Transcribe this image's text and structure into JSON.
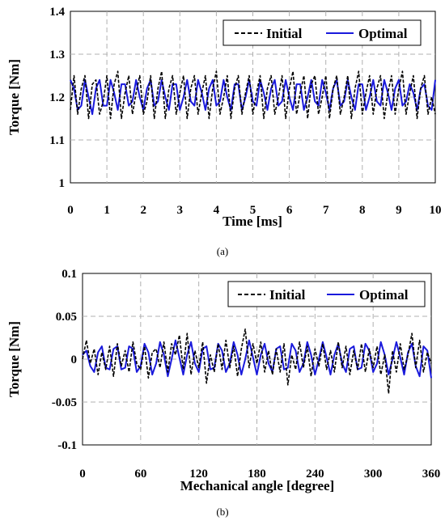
{
  "colors": {
    "initial": "#000000",
    "optimal": "#1a1adc",
    "grid": "#b0b0b0"
  },
  "chart_data": [
    {
      "type": "line",
      "caption": "(a)",
      "xlabel": "Time [ms]",
      "ylabel": "Torque [Nm]",
      "xlim": [
        0,
        10
      ],
      "ylim": [
        1,
        1.4
      ],
      "xticks": [
        0,
        1,
        2,
        3,
        4,
        5,
        6,
        7,
        8,
        9,
        10
      ],
      "yticks": [
        1,
        1.1,
        1.2,
        1.3,
        1.4
      ],
      "ytick_labels": [
        "1",
        "1.1",
        "1.2",
        "1.3",
        "1.4"
      ],
      "grid": true,
      "legend_position": "top-right",
      "series": [
        {
          "name": "Initial",
          "style": "dashed",
          "color": "#000000",
          "x": [
            0,
            0.1,
            0.2,
            0.3,
            0.4,
            0.5,
            0.6,
            0.7,
            0.8,
            0.9,
            1,
            1.1,
            1.2,
            1.3,
            1.4,
            1.5,
            1.6,
            1.7,
            1.8,
            1.9,
            2,
            2.1,
            2.2,
            2.3,
            2.4,
            2.5,
            2.6,
            2.7,
            2.8,
            2.9,
            3,
            3.1,
            3.2,
            3.3,
            3.4,
            3.5,
            3.6,
            3.7,
            3.8,
            3.9,
            4,
            4.1,
            4.2,
            4.3,
            4.4,
            4.5,
            4.6,
            4.7,
            4.8,
            4.9,
            5,
            5.1,
            5.2,
            5.3,
            5.4,
            5.5,
            5.6,
            5.7,
            5.8,
            5.9,
            6,
            6.1,
            6.2,
            6.3,
            6.4,
            6.5,
            6.6,
            6.7,
            6.8,
            6.9,
            7,
            7.1,
            7.2,
            7.3,
            7.4,
            7.5,
            7.6,
            7.7,
            7.8,
            7.9,
            8,
            8.1,
            8.2,
            8.3,
            8.4,
            8.5,
            8.6,
            8.7,
            8.8,
            8.9,
            9,
            9.1,
            9.2,
            9.3,
            9.4,
            9.5,
            9.6,
            9.7,
            9.8,
            9.9,
            10
          ],
          "y": [
            1.17,
            1.25,
            1.16,
            1.22,
            1.25,
            1.15,
            1.23,
            1.24,
            1.16,
            1.19,
            1.25,
            1.15,
            1.23,
            1.26,
            1.15,
            1.21,
            1.25,
            1.16,
            1.21,
            1.25,
            1.16,
            1.19,
            1.25,
            1.15,
            1.22,
            1.26,
            1.15,
            1.22,
            1.25,
            1.16,
            1.21,
            1.25,
            1.15,
            1.22,
            1.25,
            1.16,
            1.21,
            1.25,
            1.15,
            1.22,
            1.26,
            1.16,
            1.2,
            1.25,
            1.15,
            1.22,
            1.25,
            1.16,
            1.21,
            1.25,
            1.16,
            1.21,
            1.25,
            1.15,
            1.22,
            1.25,
            1.16,
            1.2,
            1.25,
            1.15,
            1.22,
            1.26,
            1.16,
            1.21,
            1.25,
            1.15,
            1.23,
            1.25,
            1.16,
            1.2,
            1.25,
            1.15,
            1.22,
            1.25,
            1.16,
            1.2,
            1.25,
            1.15,
            1.22,
            1.26,
            1.16,
            1.21,
            1.25,
            1.16,
            1.22,
            1.25,
            1.15,
            1.21,
            1.25,
            1.16,
            1.22,
            1.26,
            1.16,
            1.21,
            1.25,
            1.15,
            1.22,
            1.25,
            1.16,
            1.2,
            1.16
          ]
        },
        {
          "name": "Optimal",
          "style": "solid",
          "color": "#1a1adc",
          "x": [
            0,
            0.1,
            0.2,
            0.3,
            0.4,
            0.5,
            0.6,
            0.7,
            0.8,
            0.9,
            1,
            1.1,
            1.2,
            1.3,
            1.4,
            1.5,
            1.6,
            1.7,
            1.8,
            1.9,
            2,
            2.1,
            2.2,
            2.3,
            2.4,
            2.5,
            2.6,
            2.7,
            2.8,
            2.9,
            3,
            3.1,
            3.2,
            3.3,
            3.4,
            3.5,
            3.6,
            3.7,
            3.8,
            3.9,
            4,
            4.1,
            4.2,
            4.3,
            4.4,
            4.5,
            4.6,
            4.7,
            4.8,
            4.9,
            5,
            5.1,
            5.2,
            5.3,
            5.4,
            5.5,
            5.6,
            5.7,
            5.8,
            5.9,
            6,
            6.1,
            6.2,
            6.3,
            6.4,
            6.5,
            6.6,
            6.7,
            6.8,
            6.9,
            7,
            7.1,
            7.2,
            7.3,
            7.4,
            7.5,
            7.6,
            7.7,
            7.8,
            7.9,
            8,
            8.1,
            8.2,
            8.3,
            8.4,
            8.5,
            8.6,
            8.7,
            8.8,
            8.9,
            9,
            9.1,
            9.2,
            9.3,
            9.4,
            9.5,
            9.6,
            9.7,
            9.8,
            9.9,
            10
          ],
          "y": [
            1.24,
            1.22,
            1.17,
            1.18,
            1.24,
            1.2,
            1.16,
            1.22,
            1.24,
            1.18,
            1.18,
            1.24,
            1.21,
            1.17,
            1.23,
            1.23,
            1.18,
            1.19,
            1.24,
            1.2,
            1.17,
            1.22,
            1.24,
            1.18,
            1.19,
            1.24,
            1.2,
            1.17,
            1.23,
            1.23,
            1.17,
            1.2,
            1.24,
            1.19,
            1.18,
            1.24,
            1.21,
            1.17,
            1.22,
            1.24,
            1.18,
            1.19,
            1.24,
            1.2,
            1.17,
            1.23,
            1.23,
            1.17,
            1.2,
            1.24,
            1.19,
            1.18,
            1.24,
            1.21,
            1.17,
            1.22,
            1.24,
            1.18,
            1.19,
            1.24,
            1.2,
            1.17,
            1.23,
            1.23,
            1.17,
            1.2,
            1.24,
            1.19,
            1.18,
            1.24,
            1.21,
            1.17,
            1.22,
            1.24,
            1.18,
            1.19,
            1.24,
            1.2,
            1.17,
            1.23,
            1.23,
            1.17,
            1.2,
            1.24,
            1.19,
            1.18,
            1.24,
            1.21,
            1.17,
            1.22,
            1.24,
            1.18,
            1.19,
            1.23,
            1.21,
            1.17,
            1.22,
            1.23,
            1.18,
            1.17,
            1.24
          ]
        }
      ]
    },
    {
      "type": "line",
      "caption": "(b)",
      "xlabel": "Mechanical angle [degree]",
      "ylabel": "Torque [Nm]",
      "xlim": [
        0,
        360
      ],
      "ylim": [
        -0.1,
        0.1
      ],
      "xticks": [
        0,
        60,
        120,
        180,
        240,
        300,
        360
      ],
      "yticks": [
        -0.1,
        -0.05,
        0,
        0.05,
        0.1
      ],
      "ytick_labels": [
        "-0.1",
        "-0.05",
        "0",
        "0.05",
        "0.1"
      ],
      "grid": true,
      "legend_position": "top-right",
      "series": [
        {
          "name": "Initial",
          "style": "dashed",
          "color": "#000000",
          "x": [
            0,
            4,
            8,
            12,
            16,
            20,
            24,
            28,
            32,
            36,
            40,
            44,
            48,
            52,
            56,
            60,
            64,
            68,
            72,
            76,
            80,
            84,
            88,
            92,
            96,
            100,
            104,
            108,
            112,
            116,
            120,
            124,
            128,
            132,
            136,
            140,
            144,
            148,
            152,
            156,
            160,
            164,
            168,
            172,
            176,
            180,
            184,
            188,
            192,
            196,
            200,
            204,
            208,
            212,
            216,
            220,
            224,
            228,
            232,
            236,
            240,
            244,
            248,
            252,
            256,
            260,
            264,
            268,
            272,
            276,
            280,
            284,
            288,
            292,
            296,
            300,
            304,
            308,
            312,
            316,
            320,
            324,
            328,
            332,
            336,
            340,
            344,
            348,
            352,
            356,
            360
          ],
          "y": [
            0.0,
            0.022,
            -0.005,
            0.012,
            -0.018,
            0.008,
            -0.012,
            0.015,
            -0.02,
            0.018,
            -0.008,
            0.01,
            -0.015,
            0.02,
            -0.005,
            -0.012,
            0.015,
            -0.022,
            0.008,
            0.012,
            -0.01,
            0.02,
            -0.015,
            0.018,
            0.005,
            0.028,
            -0.012,
            0.03,
            -0.018,
            0.01,
            -0.01,
            0.02,
            -0.028,
            0.005,
            -0.015,
            0.018,
            -0.012,
            0.022,
            -0.01,
            0.015,
            -0.02,
            0.012,
            0.035,
            -0.01,
            0.018,
            -0.005,
            0.02,
            -0.015,
            0.01,
            -0.018,
            0.012,
            -0.015,
            0.018,
            -0.03,
            0.005,
            -0.012,
            0.02,
            -0.01,
            0.015,
            -0.02,
            0.012,
            -0.008,
            0.018,
            -0.012,
            0.01,
            -0.015,
            0.02,
            -0.01,
            0.015,
            -0.018,
            0.01,
            -0.012,
            0.018,
            -0.015,
            0.012,
            -0.01,
            0.015,
            -0.018,
            0.005,
            -0.04,
            0.01,
            -0.015,
            0.018,
            -0.012,
            0.005,
            0.03,
            -0.01,
            0.022,
            -0.015,
            0.008,
            -0.005
          ]
        },
        {
          "name": "Optimal",
          "style": "solid",
          "color": "#1a1adc",
          "x": [
            0,
            4,
            8,
            12,
            16,
            20,
            24,
            28,
            32,
            36,
            40,
            44,
            48,
            52,
            56,
            60,
            64,
            68,
            72,
            76,
            80,
            84,
            88,
            92,
            96,
            100,
            104,
            108,
            112,
            116,
            120,
            124,
            128,
            132,
            136,
            140,
            144,
            148,
            152,
            156,
            160,
            164,
            168,
            172,
            176,
            180,
            184,
            188,
            192,
            196,
            200,
            204,
            208,
            212,
            216,
            220,
            224,
            228,
            232,
            236,
            240,
            244,
            248,
            252,
            256,
            260,
            264,
            268,
            272,
            276,
            280,
            284,
            288,
            292,
            296,
            300,
            304,
            308,
            312,
            316,
            320,
            324,
            328,
            332,
            336,
            340,
            344,
            348,
            352,
            356,
            360
          ],
          "y": [
            0.005,
            0.01,
            -0.008,
            -0.015,
            0.008,
            0.015,
            -0.01,
            -0.012,
            0.012,
            0.015,
            -0.012,
            -0.01,
            0.015,
            0.012,
            -0.015,
            -0.008,
            0.018,
            0.008,
            -0.018,
            -0.005,
            0.02,
            0.005,
            -0.02,
            0.0,
            0.022,
            0.002,
            -0.018,
            0.005,
            0.02,
            -0.005,
            -0.015,
            0.012,
            0.015,
            -0.012,
            -0.01,
            0.018,
            0.01,
            -0.015,
            -0.005,
            0.02,
            0.005,
            -0.018,
            0.0,
            0.022,
            0.002,
            -0.018,
            0.005,
            0.018,
            -0.005,
            -0.015,
            0.012,
            0.015,
            -0.012,
            -0.01,
            0.018,
            0.01,
            -0.015,
            -0.005,
            0.02,
            0.005,
            -0.018,
            0.0,
            0.02,
            0.002,
            -0.018,
            0.005,
            0.018,
            -0.005,
            -0.015,
            0.012,
            0.015,
            -0.012,
            -0.01,
            0.018,
            0.01,
            -0.015,
            -0.005,
            0.02,
            0.005,
            -0.018,
            0.0,
            0.02,
            0.002,
            -0.018,
            0.008,
            0.018,
            -0.008,
            -0.02,
            0.015,
            0.01,
            -0.022
          ]
        }
      ]
    }
  ]
}
